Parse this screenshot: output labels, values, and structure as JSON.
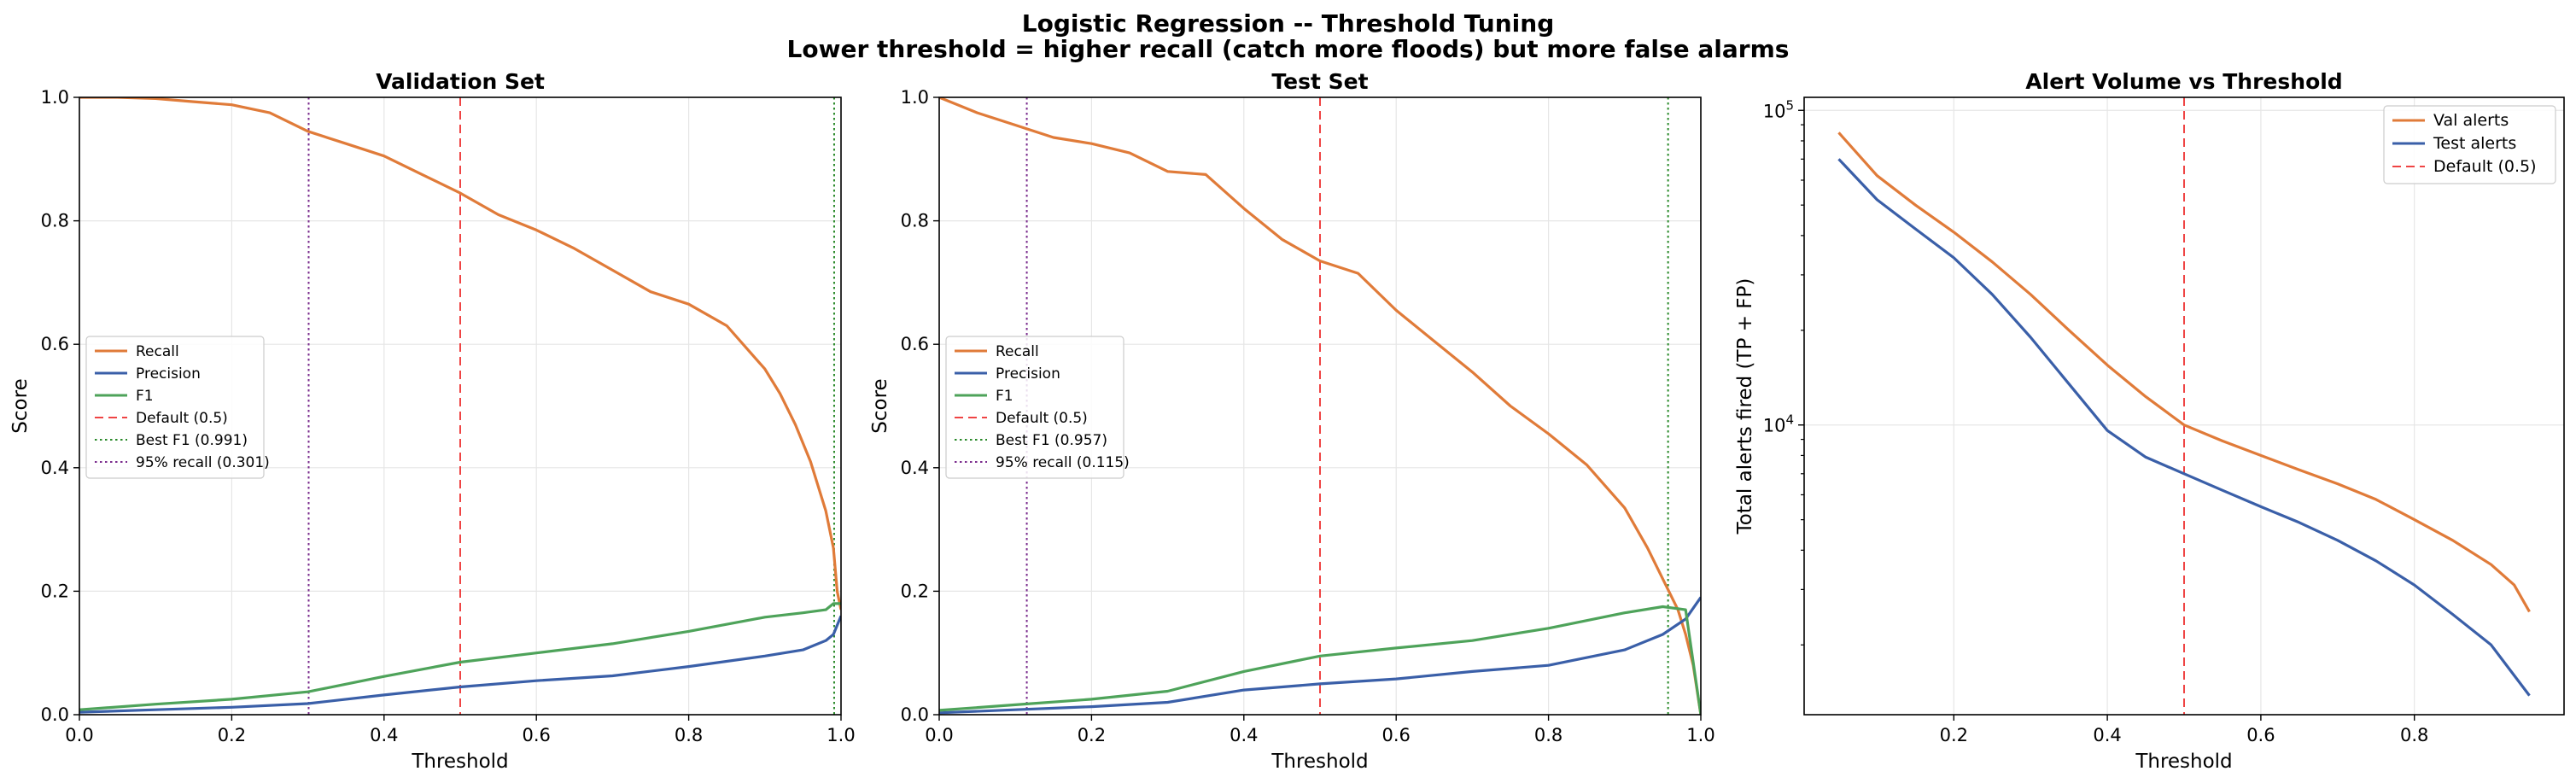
{
  "figure": {
    "title_line1": "Logistic Regression -- Threshold Tuning",
    "title_line2": "Lower threshold = higher recall (catch more floods) but more false alarms"
  },
  "colors": {
    "recall": "#e07b39",
    "precision": "#3a5fa8",
    "f1": "#4ea35a",
    "default_line": "#ef4444",
    "best_f1_line": "#2a8a2a",
    "recall95_line": "#7b2d8e",
    "grid": "#e6e6e6",
    "axis": "#000000"
  },
  "chart_data": [
    {
      "id": "validation",
      "type": "line",
      "title": "Validation Set",
      "xlabel": "Threshold",
      "ylabel": "Score",
      "xlim": [
        0,
        1
      ],
      "ylim": [
        0,
        1
      ],
      "xticks": [
        0.0,
        0.2,
        0.4,
        0.6,
        0.8,
        1.0
      ],
      "yticks": [
        0.0,
        0.2,
        0.4,
        0.6,
        0.8,
        1.0
      ],
      "xtick_labels": [
        "0.0",
        "0.2",
        "0.4",
        "0.6",
        "0.8",
        "1.0"
      ],
      "ytick_labels": [
        "0.0",
        "0.2",
        "0.4",
        "0.6",
        "0.8",
        "1.0"
      ],
      "grid": true,
      "legend_position": "center-left",
      "series": [
        {
          "name": "Recall",
          "key": "recall",
          "x": [
            0,
            0.05,
            0.1,
            0.15,
            0.2,
            0.25,
            0.3,
            0.35,
            0.4,
            0.45,
            0.5,
            0.55,
            0.6,
            0.65,
            0.7,
            0.75,
            0.8,
            0.85,
            0.9,
            0.92,
            0.94,
            0.96,
            0.98,
            0.99,
            0.995,
            1.0
          ],
          "y": [
            1.0,
            1.0,
            0.998,
            0.993,
            0.988,
            0.975,
            0.945,
            0.925,
            0.905,
            0.875,
            0.845,
            0.81,
            0.785,
            0.755,
            0.72,
            0.685,
            0.665,
            0.63,
            0.56,
            0.52,
            0.47,
            0.41,
            0.33,
            0.27,
            0.2,
            0.17
          ]
        },
        {
          "name": "Precision",
          "key": "precision",
          "x": [
            0,
            0.1,
            0.2,
            0.3,
            0.4,
            0.5,
            0.6,
            0.7,
            0.8,
            0.9,
            0.95,
            0.98,
            0.99,
            1.0
          ],
          "y": [
            0.004,
            0.008,
            0.012,
            0.018,
            0.032,
            0.045,
            0.055,
            0.063,
            0.078,
            0.095,
            0.105,
            0.12,
            0.13,
            0.16
          ]
        },
        {
          "name": "F1",
          "key": "f1",
          "x": [
            0,
            0.1,
            0.2,
            0.3,
            0.4,
            0.5,
            0.6,
            0.7,
            0.8,
            0.9,
            0.95,
            0.98,
            0.99,
            1.0
          ],
          "y": [
            0.008,
            0.017,
            0.025,
            0.037,
            0.062,
            0.085,
            0.1,
            0.115,
            0.135,
            0.158,
            0.165,
            0.17,
            0.18,
            0.18
          ]
        }
      ],
      "vlines": [
        {
          "name": "Default (0.5)",
          "x": 0.5,
          "style": "dashed",
          "key": "default_line"
        },
        {
          "name": "Best F1 (0.991)",
          "x": 0.991,
          "style": "dotted",
          "key": "best_f1_line"
        },
        {
          "name": "95% recall (0.301)",
          "x": 0.301,
          "style": "dotted",
          "key": "recall95_line"
        }
      ]
    },
    {
      "id": "test",
      "type": "line",
      "title": "Test Set",
      "xlabel": "Threshold",
      "ylabel": "Score",
      "xlim": [
        0,
        1
      ],
      "ylim": [
        0,
        1
      ],
      "xticks": [
        0.0,
        0.2,
        0.4,
        0.6,
        0.8,
        1.0
      ],
      "yticks": [
        0.0,
        0.2,
        0.4,
        0.6,
        0.8,
        1.0
      ],
      "xtick_labels": [
        "0.0",
        "0.2",
        "0.4",
        "0.6",
        "0.8",
        "1.0"
      ],
      "ytick_labels": [
        "0.0",
        "0.2",
        "0.4",
        "0.6",
        "0.8",
        "1.0"
      ],
      "grid": true,
      "legend_position": "center-left",
      "series": [
        {
          "name": "Recall",
          "key": "recall",
          "x": [
            0,
            0.05,
            0.1,
            0.15,
            0.2,
            0.25,
            0.3,
            0.35,
            0.4,
            0.45,
            0.5,
            0.55,
            0.6,
            0.65,
            0.7,
            0.75,
            0.8,
            0.85,
            0.9,
            0.93,
            0.95,
            0.97,
            0.98,
            0.99,
            1.0
          ],
          "y": [
            1.0,
            0.975,
            0.955,
            0.935,
            0.925,
            0.91,
            0.88,
            0.875,
            0.82,
            0.77,
            0.735,
            0.715,
            0.655,
            0.605,
            0.555,
            0.5,
            0.455,
            0.405,
            0.335,
            0.27,
            0.22,
            0.17,
            0.13,
            0.08,
            0.0
          ]
        },
        {
          "name": "Precision",
          "key": "precision",
          "x": [
            0,
            0.1,
            0.2,
            0.3,
            0.4,
            0.5,
            0.6,
            0.7,
            0.8,
            0.9,
            0.95,
            0.98,
            1.0
          ],
          "y": [
            0.003,
            0.008,
            0.013,
            0.02,
            0.04,
            0.05,
            0.058,
            0.07,
            0.08,
            0.105,
            0.13,
            0.155,
            0.19
          ]
        },
        {
          "name": "F1",
          "key": "f1",
          "x": [
            0,
            0.1,
            0.2,
            0.3,
            0.4,
            0.5,
            0.6,
            0.7,
            0.8,
            0.9,
            0.95,
            0.98,
            1.0
          ],
          "y": [
            0.007,
            0.016,
            0.025,
            0.038,
            0.07,
            0.095,
            0.108,
            0.12,
            0.14,
            0.165,
            0.175,
            0.17,
            0.0
          ]
        }
      ],
      "vlines": [
        {
          "name": "Default (0.5)",
          "x": 0.5,
          "style": "dashed",
          "key": "default_line"
        },
        {
          "name": "Best F1 (0.957)",
          "x": 0.957,
          "style": "dotted",
          "key": "best_f1_line"
        },
        {
          "name": "95% recall (0.115)",
          "x": 0.115,
          "style": "dotted",
          "key": "recall95_line"
        }
      ]
    },
    {
      "id": "alerts",
      "type": "line",
      "title": "Alert Volume vs Threshold",
      "xlabel": "Threshold",
      "ylabel": "Total alerts fired (TP + FP)",
      "yscale": "log",
      "xlim": [
        0.005,
        0.995
      ],
      "ylim": [
        1200,
        110000
      ],
      "xticks": [
        0.2,
        0.4,
        0.6,
        0.8
      ],
      "xtick_labels": [
        "0.2",
        "0.4",
        "0.6",
        "0.8"
      ],
      "ymajor_ticks": [
        {
          "value": 10000,
          "base": "10",
          "exp": "4"
        },
        {
          "value": 100000,
          "base": "10",
          "exp": "5"
        }
      ],
      "yminor_ticks": [
        2000,
        3000,
        4000,
        5000,
        6000,
        7000,
        8000,
        9000,
        20000,
        30000,
        40000,
        50000,
        60000,
        70000,
        80000,
        90000
      ],
      "grid": true,
      "legend_position": "top-right",
      "series": [
        {
          "name": "Val alerts",
          "key": "recall",
          "x": [
            0.05,
            0.1,
            0.15,
            0.2,
            0.25,
            0.3,
            0.35,
            0.4,
            0.45,
            0.5,
            0.55,
            0.6,
            0.65,
            0.7,
            0.75,
            0.8,
            0.85,
            0.9,
            0.93,
            0.95
          ],
          "y": [
            85000,
            62000,
            50000,
            41000,
            33000,
            26000,
            20000,
            15500,
            12300,
            10000,
            8900,
            8000,
            7200,
            6500,
            5800,
            5000,
            4300,
            3600,
            3100,
            2550
          ]
        },
        {
          "name": "Test alerts",
          "key": "precision",
          "x": [
            0.05,
            0.1,
            0.15,
            0.2,
            0.25,
            0.3,
            0.35,
            0.4,
            0.45,
            0.5,
            0.55,
            0.6,
            0.65,
            0.7,
            0.75,
            0.8,
            0.85,
            0.9,
            0.93,
            0.95
          ],
          "y": [
            70000,
            52000,
            42000,
            34000,
            26000,
            19000,
            13500,
            9600,
            7900,
            7000,
            6200,
            5500,
            4900,
            4300,
            3700,
            3100,
            2500,
            2000,
            1600,
            1380
          ]
        }
      ],
      "vlines": [
        {
          "name": "Default (0.5)",
          "x": 0.5,
          "style": "dashed",
          "key": "default_line"
        }
      ]
    }
  ]
}
